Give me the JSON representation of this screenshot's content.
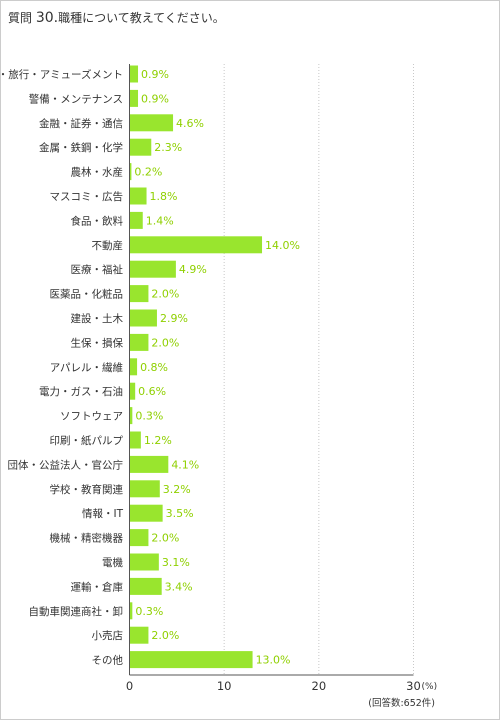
{
  "title": {
    "prefix": "質問",
    "number": "30.",
    "question": "職種について教えてください。"
  },
  "chart_data": {
    "type": "bar",
    "orientation": "horizontal",
    "categories": [
      "ホテル・旅行・アミューズメント",
      "警備・メンテナンス",
      "金融・証券・通信",
      "金属・鉄鋼・化学",
      "農林・水産",
      "マスコミ・広告",
      "食品・飲料",
      "不動産",
      "医療・福祉",
      "医薬品・化粧品",
      "建設・土木",
      "生保・損保",
      "アパレル・繊維",
      "電力・ガス・石油",
      "ソフトウェア",
      "印刷・紙パルプ",
      "団体・公益法人・官公庁",
      "学校・教育関連",
      "情報・IT",
      "機械・精密機器",
      "電機",
      "運輸・倉庫",
      "自動車関連商社・卸",
      "小売店",
      "その他"
    ],
    "values": [
      0.9,
      0.9,
      4.6,
      2.3,
      0.2,
      1.8,
      1.4,
      14.0,
      4.9,
      2.0,
      2.9,
      2.0,
      0.8,
      0.6,
      0.3,
      1.2,
      4.1,
      3.2,
      3.5,
      2.0,
      3.1,
      3.4,
      0.3,
      2.0,
      13.0
    ],
    "value_labels": [
      "0.9%",
      "0.9%",
      "4.6%",
      "2.3%",
      "0.2%",
      "1.8%",
      "1.4%",
      "14.0%",
      "4.9%",
      "2.0%",
      "2.9%",
      "2.0%",
      "0.8%",
      "0.6%",
      "0.3%",
      "1.2%",
      "4.1%",
      "3.2%",
      "3.5%",
      "2.0%",
      "3.1%",
      "3.4%",
      "0.3%",
      "2.0%",
      "13.0%"
    ],
    "xlim": [
      0,
      30
    ],
    "xticks": [
      0,
      10,
      20,
      30
    ],
    "xtick_labels": [
      "0",
      "10",
      "20",
      "30"
    ],
    "unit": "(%)",
    "note": "(回答数:652件)",
    "grid": "vertical dotted",
    "bar_color": "#99e52e",
    "value_label_color": "#8fd000"
  }
}
